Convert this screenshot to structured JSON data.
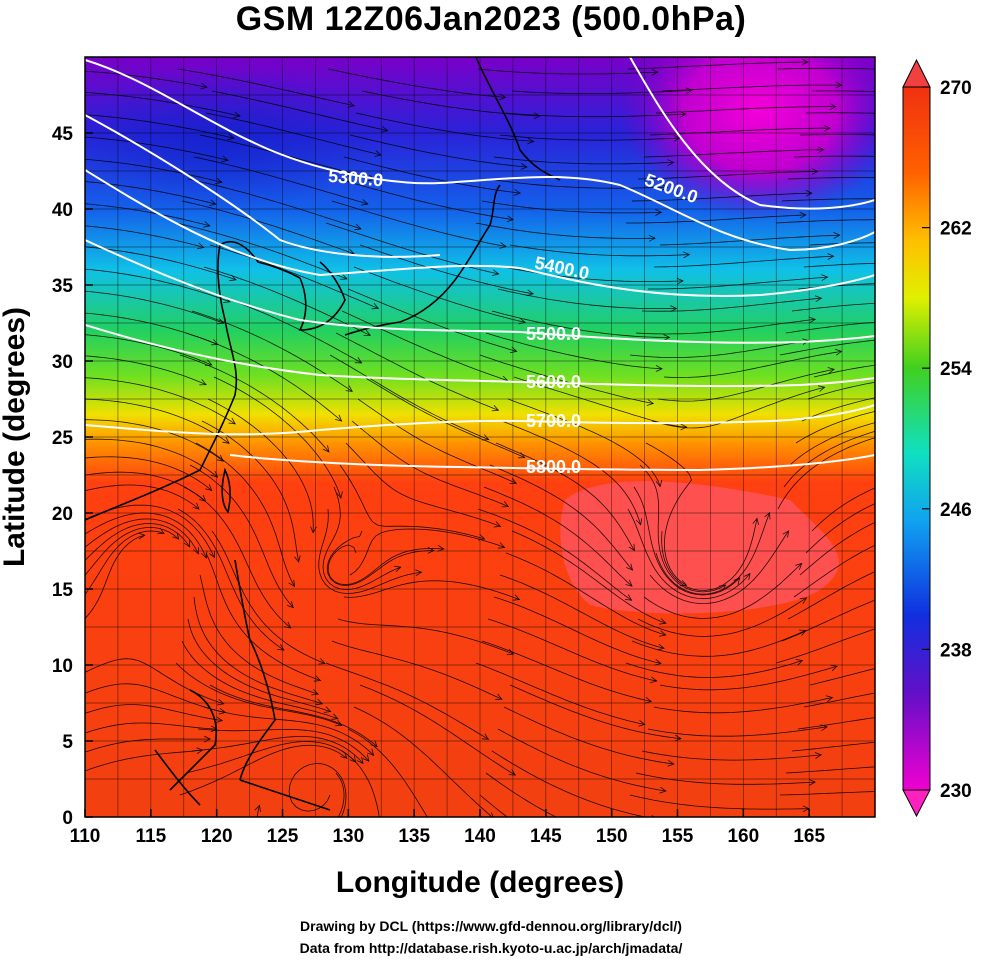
{
  "title": "GSM 12Z06Jan2023 (500.0hPa)",
  "xlabel": "Longitude (degrees)",
  "ylabel": "Latitude  (degrees)",
  "credit_line1": "Drawing by DCL (https://www.gfd-dennou.org/library/dcl/)",
  "credit_line2": "Data from http://database.rish.kyoto-u.ac.jp/arch/jmadata/",
  "map": {
    "lon_range": [
      110,
      170
    ],
    "lat_range": [
      0,
      50
    ],
    "lon_ticks": [
      "110",
      "115",
      "120",
      "125",
      "130",
      "135",
      "140",
      "145",
      "150",
      "155",
      "160",
      "165"
    ],
    "lat_ticks": [
      "0",
      "5",
      "10",
      "15",
      "20",
      "25",
      "30",
      "35",
      "40",
      "45"
    ]
  },
  "colorbar": {
    "ticks": [
      "230",
      "238",
      "246",
      "254",
      "262",
      "270"
    ],
    "range": [
      230,
      270
    ]
  },
  "contours": [
    {
      "label": "5200.0"
    },
    {
      "label": "5300.0"
    },
    {
      "label": "5400.0"
    },
    {
      "label": "5500.0"
    },
    {
      "label": "5600.0"
    },
    {
      "label": "5700.0"
    },
    {
      "label": "5800.0"
    }
  ]
}
